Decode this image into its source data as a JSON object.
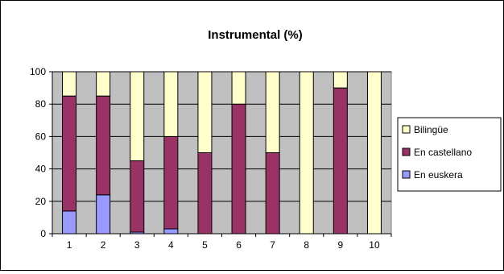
{
  "chart_data": {
    "type": "bar",
    "stacked": true,
    "title": "Instrumental (%)",
    "xlabel": "",
    "ylabel": "",
    "categories": [
      "1",
      "2",
      "3",
      "4",
      "5",
      "6",
      "7",
      "8",
      "9",
      "10"
    ],
    "ylim": [
      0,
      100
    ],
    "yticks": [
      0,
      20,
      40,
      60,
      80,
      100
    ],
    "grid": true,
    "legend_position": "right",
    "series": [
      {
        "name": "En euskera",
        "color": "#9999ff",
        "values": [
          14,
          24,
          1,
          3,
          0,
          0,
          0,
          0,
          0,
          0
        ]
      },
      {
        "name": "En castellano",
        "color": "#993366",
        "values": [
          71,
          61,
          44,
          57,
          50,
          80,
          50,
          0,
          90,
          0
        ]
      },
      {
        "name": "Bilingüe",
        "color": "#ffffcc",
        "values": [
          15,
          15,
          55,
          40,
          50,
          20,
          50,
          100,
          10,
          100
        ]
      }
    ],
    "legend_order": [
      "Bilingüe",
      "En castellano",
      "En euskera"
    ],
    "plot_background": "#c0c0c0"
  }
}
